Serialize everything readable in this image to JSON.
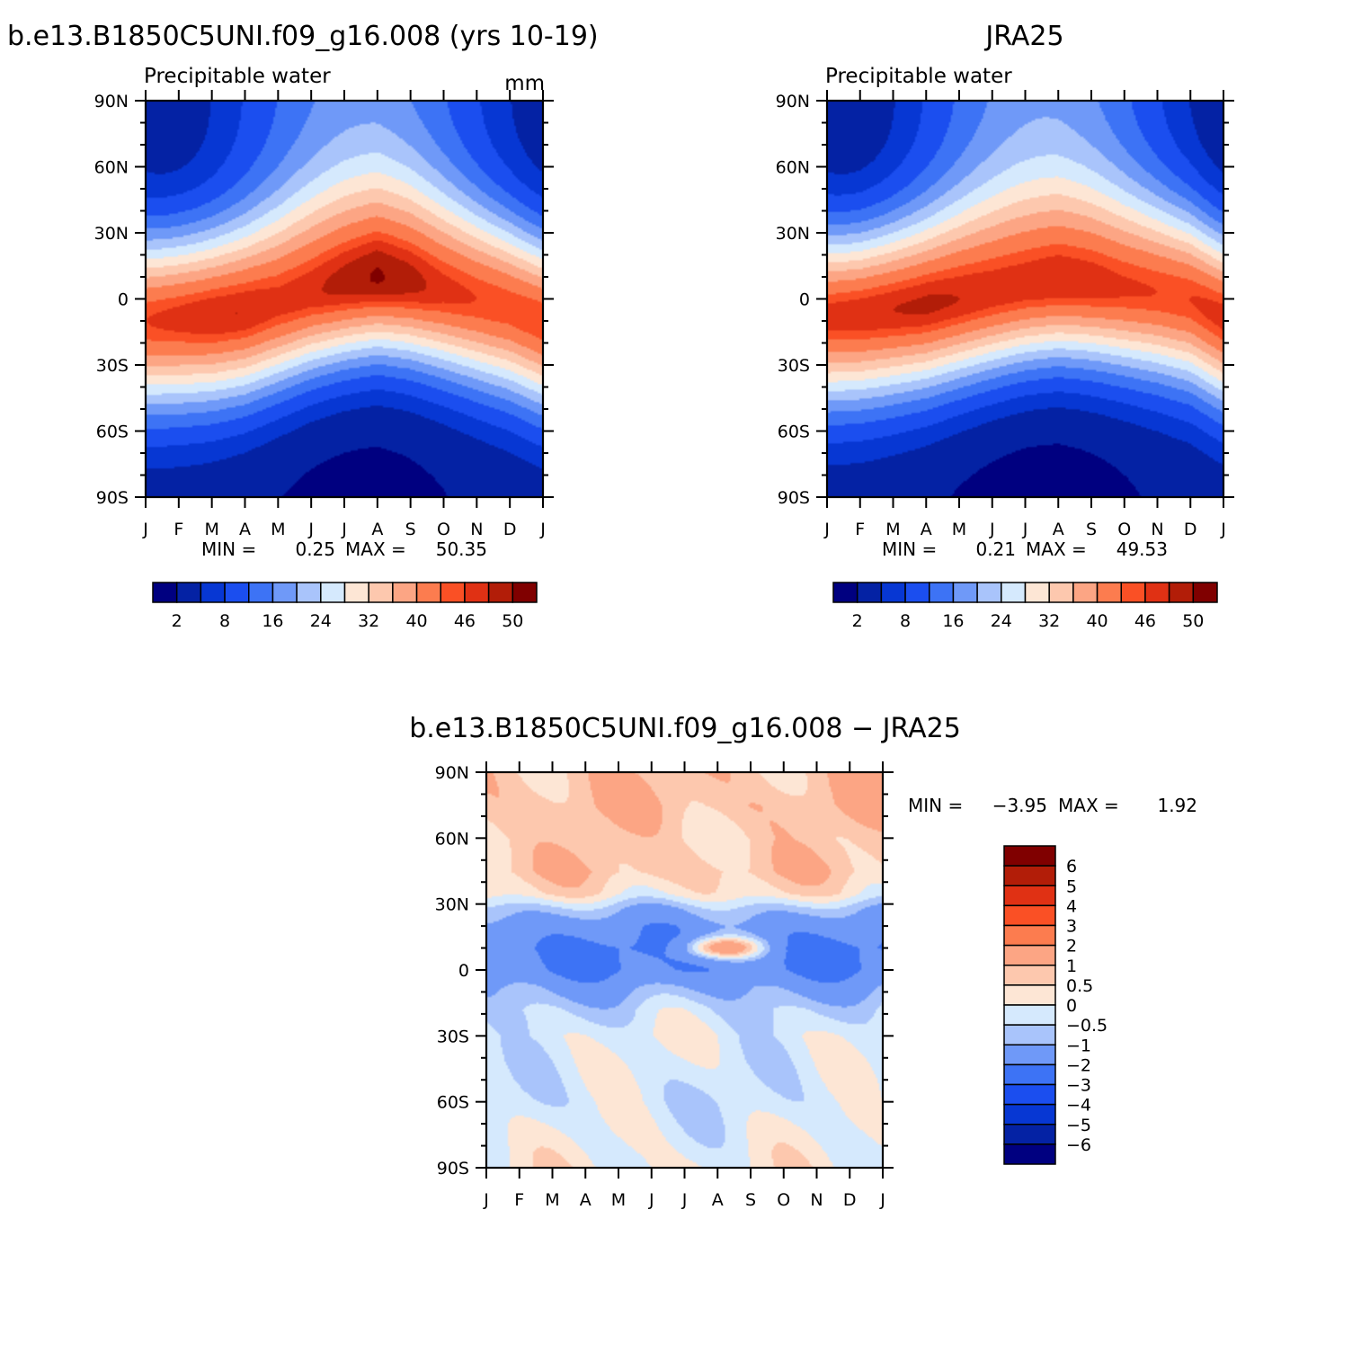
{
  "panels": [
    {
      "title": "b.e13.B1850C5UNI.f09_g16.008 (yrs 10-19)",
      "left_string": "Precipitable water",
      "right_string": "mm",
      "min_label": "MIN =",
      "min_value": "0.25",
      "max_label": "MAX =",
      "max_value": "50.35"
    },
    {
      "title": "JRA25",
      "left_string": "Precipitable water",
      "right_string": "",
      "min_label": "MIN =",
      "min_value": "0.21",
      "max_label": "MAX =",
      "max_value": "49.53"
    },
    {
      "title": "b.e13.B1850C5UNI.f09_g16.008 − JRA25",
      "left_string": "",
      "right_string": "",
      "min_label": "MIN =",
      "min_value": "−3.95",
      "max_label": "MAX =",
      "max_value": "1.92"
    }
  ],
  "chart_data": [
    {
      "type": "heatmap",
      "title": "b.e13.B1850C5UNI.f09_g16.008 (yrs 10-19)",
      "subtitle": "Precipitable water",
      "units": "mm",
      "x_ticks": [
        "J",
        "F",
        "M",
        "A",
        "M",
        "J",
        "J",
        "A",
        "S",
        "O",
        "N",
        "D",
        "J"
      ],
      "y_ticks": [
        "90N",
        "60N",
        "30N",
        "0",
        "30S",
        "60S",
        "90S"
      ],
      "ylim": [
        -90,
        90
      ],
      "zmin": 0.25,
      "zmax": 50.35,
      "contour_levels": [
        2,
        5,
        8,
        12,
        16,
        20,
        24,
        28,
        32,
        36,
        40,
        44,
        46,
        48,
        50
      ],
      "colorbar_labels": [
        "2",
        "8",
        "16",
        "24",
        "32",
        "40",
        "46",
        "50"
      ],
      "colorbar_label_positions": [
        1,
        3,
        5,
        7,
        9,
        11,
        13,
        15
      ],
      "colorbar_colors": [
        "#000080",
        "#0422a4",
        "#0737d3",
        "#1b4eef",
        "#3d73f5",
        "#6f99f8",
        "#a9c4fb",
        "#d5e9fd",
        "#fde6d5",
        "#fdc8ae",
        "#fca584",
        "#fc7c4f",
        "#fa5025",
        "#e03114",
        "#b21d08",
        "#800000"
      ],
      "eq_lat_by_month": [
        -10,
        -9,
        -8,
        -6,
        -2,
        3,
        7,
        10,
        8,
        4,
        0,
        -4,
        -10
      ],
      "peak_value_by_month": [
        46,
        47,
        48,
        48,
        47,
        47.5,
        49,
        50.3,
        49,
        47,
        46,
        45.5,
        46
      ],
      "pole_values": {
        "north_winter": 3,
        "north_summer": 17,
        "south_winter": 1.5,
        "south_summer": 2.5
      }
    },
    {
      "type": "heatmap",
      "title": "JRA25",
      "subtitle": "Precipitable water",
      "x_ticks": [
        "J",
        "F",
        "M",
        "A",
        "M",
        "J",
        "J",
        "A",
        "S",
        "O",
        "N",
        "D",
        "J"
      ],
      "y_ticks": [
        "90N",
        "60N",
        "30N",
        "0",
        "30S",
        "60S",
        "90S"
      ],
      "ylim": [
        -90,
        90
      ],
      "zmin": 0.21,
      "zmax": 49.53,
      "contour_levels": [
        2,
        5,
        8,
        12,
        16,
        20,
        24,
        28,
        32,
        36,
        40,
        44,
        46,
        48,
        50
      ],
      "colorbar_labels": [
        "2",
        "8",
        "16",
        "24",
        "32",
        "40",
        "46",
        "50"
      ],
      "colorbar_label_positions": [
        1,
        3,
        5,
        7,
        9,
        11,
        13,
        15
      ],
      "colorbar_colors": [
        "#000080",
        "#0422a4",
        "#0737d3",
        "#1b4eef",
        "#3d73f5",
        "#6f99f8",
        "#a9c4fb",
        "#d5e9fd",
        "#fde6d5",
        "#fdc8ae",
        "#fca584",
        "#fc7c4f",
        "#fa5025",
        "#e03114",
        "#b21d08",
        "#800000"
      ],
      "eq_lat_by_month": [
        -8,
        -7,
        -5,
        -3,
        0,
        3,
        6,
        8,
        7,
        5,
        3,
        0,
        -8
      ],
      "peak_value_by_month": [
        47,
        47.5,
        48,
        48.5,
        48,
        47.5,
        47.5,
        48,
        47.5,
        46.5,
        46,
        46,
        47
      ],
      "pole_values": {
        "north_winter": 2.5,
        "north_summer": 18,
        "south_winter": 1.3,
        "south_summer": 2.5
      }
    },
    {
      "type": "heatmap",
      "title": "b.e13.B1850C5UNI.f09_g16.008 − JRA25",
      "x_ticks": [
        "J",
        "F",
        "M",
        "A",
        "M",
        "J",
        "J",
        "A",
        "S",
        "O",
        "N",
        "D",
        "J"
      ],
      "y_ticks": [
        "90N",
        "60N",
        "30N",
        "0",
        "30S",
        "60S",
        "90S"
      ],
      "ylim": [
        -90,
        90
      ],
      "zmin": -3.95,
      "zmax": 1.92,
      "contour_levels": [
        -6,
        -5,
        -4,
        -3,
        -2,
        -1,
        -0.5,
        0,
        0.5,
        1,
        2,
        3,
        4,
        5,
        6
      ],
      "colorbar_labels": [
        "6",
        "5",
        "4",
        "3",
        "2",
        "1",
        "0.5",
        "0",
        "−0.5",
        "−1",
        "−2",
        "−3",
        "−4",
        "−5",
        "−6"
      ],
      "colorbar_colors": [
        "#800000",
        "#b21d08",
        "#e03114",
        "#fa5025",
        "#fc7c4f",
        "#fca584",
        "#fdc8ae",
        "#fde6d5",
        "#d5e9fd",
        "#a9c4fb",
        "#6f99f8",
        "#3d73f5",
        "#1b4eef",
        "#0737d3",
        "#0422a4",
        "#000080"
      ],
      "lat_profile": [
        [
          90,
          0.8
        ],
        [
          75,
          0.9
        ],
        [
          60,
          0.6
        ],
        [
          45,
          0.8
        ],
        [
          35,
          0.3
        ],
        [
          28,
          -0.8
        ],
        [
          20,
          -1.6
        ],
        [
          10,
          -2.1
        ],
        [
          0,
          -2.0
        ],
        [
          -8,
          -1.2
        ],
        [
          -18,
          -0.5
        ],
        [
          -30,
          -0.1
        ],
        [
          -45,
          -0.2
        ],
        [
          -60,
          -0.3
        ],
        [
          -75,
          -0.1
        ],
        [
          -90,
          0.1
        ]
      ]
    }
  ]
}
